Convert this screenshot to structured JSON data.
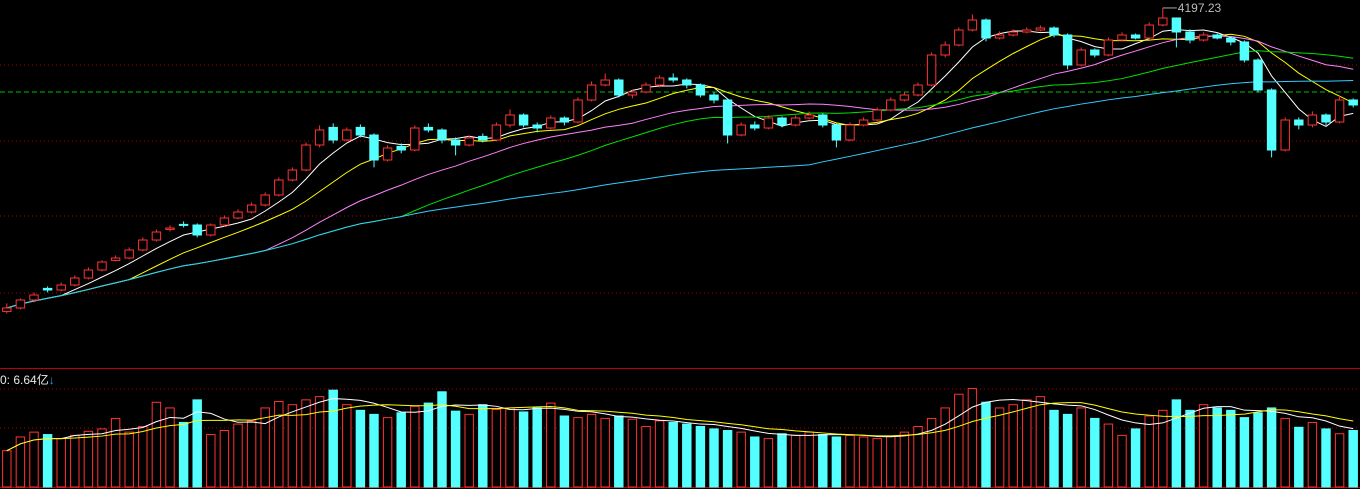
{
  "chart_data": {
    "type": "candlestick",
    "colors": {
      "up": "#ff3333",
      "down": "#54ffff",
      "ma5": "#ffffff",
      "ma10": "#ffff00",
      "ma20": "#ff80ff",
      "ma30": "#00e000",
      "ma60": "#33ccff",
      "grid": "#b00000",
      "divider": "#c00000",
      "price_line": "#00c000"
    },
    "price_ylim": [
      2437,
      4237
    ],
    "volume_ylim": [
      0,
      14.5
    ],
    "max_label": "4197.23",
    "max_index": 85,
    "volume_label": "0: 6.64亿",
    "volume_arrow": "↓",
    "ma_periods": [
      5,
      10,
      20,
      30,
      60
    ],
    "volume_ma_periods": [
      5,
      10
    ],
    "ohlc": [
      [
        2680,
        2720,
        2670,
        2697
      ],
      [
        2697,
        2745,
        2690,
        2737
      ],
      [
        2737,
        2775,
        2725,
        2762
      ],
      [
        2795,
        2805,
        2775,
        2787
      ],
      [
        2787,
        2825,
        2780,
        2812
      ],
      [
        2812,
        2860,
        2805,
        2847
      ],
      [
        2847,
        2900,
        2840,
        2887
      ],
      [
        2887,
        2935,
        2880,
        2927
      ],
      [
        2935,
        2960,
        2930,
        2947
      ],
      [
        2947,
        3000,
        2940,
        2987
      ],
      [
        2987,
        3050,
        2980,
        3037
      ],
      [
        3037,
        3090,
        3030,
        3077
      ],
      [
        3090,
        3110,
        3080,
        3097
      ],
      [
        3115,
        3130,
        3100,
        3112
      ],
      [
        3112,
        3120,
        3050,
        3062
      ],
      [
        3062,
        3120,
        3055,
        3112
      ],
      [
        3112,
        3160,
        3105,
        3147
      ],
      [
        3147,
        3190,
        3140,
        3177
      ],
      [
        3177,
        3225,
        3170,
        3212
      ],
      [
        3212,
        3275,
        3205,
        3262
      ],
      [
        3262,
        3350,
        3255,
        3337
      ],
      [
        3337,
        3400,
        3330,
        3387
      ],
      [
        3387,
        3525,
        3380,
        3512
      ],
      [
        3512,
        3610,
        3500,
        3587
      ],
      [
        3600,
        3620,
        3520,
        3537
      ],
      [
        3537,
        3600,
        3530,
        3587
      ],
      [
        3600,
        3615,
        3550,
        3562
      ],
      [
        3562,
        3570,
        3400,
        3437
      ],
      [
        3437,
        3510,
        3430,
        3497
      ],
      [
        3505,
        3520,
        3470,
        3487
      ],
      [
        3487,
        3610,
        3480,
        3597
      ],
      [
        3600,
        3620,
        3575,
        3587
      ],
      [
        3587,
        3595,
        3520,
        3537
      ],
      [
        3537,
        3550,
        3460,
        3512
      ],
      [
        3512,
        3560,
        3505,
        3547
      ],
      [
        3555,
        3570,
        3525,
        3537
      ],
      [
        3537,
        3625,
        3530,
        3612
      ],
      [
        3612,
        3690,
        3600,
        3662
      ],
      [
        3662,
        3670,
        3600,
        3612
      ],
      [
        3612,
        3625,
        3575,
        3597
      ],
      [
        3597,
        3660,
        3590,
        3647
      ],
      [
        3647,
        3655,
        3610,
        3627
      ],
      [
        3627,
        3750,
        3620,
        3737
      ],
      [
        3737,
        3830,
        3730,
        3812
      ],
      [
        3812,
        3870,
        3805,
        3837
      ],
      [
        3837,
        3845,
        3750,
        3762
      ],
      [
        3762,
        3790,
        3745,
        3777
      ],
      [
        3777,
        3825,
        3770,
        3812
      ],
      [
        3812,
        3860,
        3800,
        3847
      ],
      [
        3847,
        3870,
        3825,
        3837
      ],
      [
        3837,
        3845,
        3795,
        3812
      ],
      [
        3812,
        3820,
        3750,
        3762
      ],
      [
        3762,
        3775,
        3720,
        3737
      ],
      [
        3737,
        3745,
        3520,
        3562
      ],
      [
        3562,
        3625,
        3555,
        3612
      ],
      [
        3612,
        3630,
        3585,
        3597
      ],
      [
        3597,
        3660,
        3590,
        3647
      ],
      [
        3647,
        3655,
        3600,
        3612
      ],
      [
        3612,
        3660,
        3605,
        3647
      ],
      [
        3647,
        3680,
        3640,
        3662
      ],
      [
        3662,
        3670,
        3600,
        3612
      ],
      [
        3612,
        3620,
        3500,
        3537
      ],
      [
        3537,
        3625,
        3530,
        3612
      ],
      [
        3612,
        3650,
        3605,
        3637
      ],
      [
        3637,
        3700,
        3630,
        3687
      ],
      [
        3687,
        3750,
        3680,
        3737
      ],
      [
        3737,
        3775,
        3730,
        3762
      ],
      [
        3762,
        3825,
        3755,
        3812
      ],
      [
        3812,
        3975,
        3805,
        3962
      ],
      [
        3962,
        4030,
        3950,
        4012
      ],
      [
        4012,
        4100,
        4005,
        4087
      ],
      [
        4087,
        4165,
        4080,
        4137
      ],
      [
        4137,
        4145,
        4030,
        4047
      ],
      [
        4047,
        4080,
        4040,
        4062
      ],
      [
        4062,
        4090,
        4055,
        4077
      ],
      [
        4077,
        4100,
        4070,
        4087
      ],
      [
        4087,
        4110,
        4080,
        4097
      ],
      [
        4097,
        4105,
        4050,
        4062
      ],
      [
        4062,
        4070,
        3890,
        3912
      ],
      [
        3912,
        4000,
        3905,
        3987
      ],
      [
        3987,
        3995,
        3950,
        3962
      ],
      [
        3962,
        4050,
        3955,
        4037
      ],
      [
        4037,
        4075,
        4030,
        4062
      ],
      [
        4062,
        4070,
        4040,
        4047
      ],
      [
        4047,
        4125,
        4040,
        4112
      ],
      [
        4112,
        4197.23,
        4105,
        4147
      ],
      [
        4147,
        4150,
        4000,
        4077
      ],
      [
        4077,
        4090,
        4020,
        4037
      ],
      [
        4037,
        4075,
        4030,
        4062
      ],
      [
        4062,
        4070,
        4040,
        4047
      ],
      [
        4047,
        4055,
        4010,
        4027
      ],
      [
        4027,
        4035,
        3925,
        3937
      ],
      [
        3937,
        3945,
        3775,
        3787
      ],
      [
        3787,
        3795,
        3450,
        3487
      ],
      [
        3487,
        3650,
        3480,
        3637
      ],
      [
        3637,
        3650,
        3590,
        3612
      ],
      [
        3612,
        3680,
        3600,
        3662
      ],
      [
        3662,
        3670,
        3610,
        3627
      ],
      [
        3627,
        3760,
        3620,
        3737
      ],
      [
        3737,
        3745,
        3700,
        3712
      ]
    ],
    "volume": [
      4.5,
      6.2,
      6.8,
      6.5,
      6.0,
      6.4,
      6.9,
      7.2,
      8.5,
      6.8,
      7.5,
      10.5,
      9.8,
      8.0,
      10.8,
      6.5,
      7.0,
      7.8,
      8.2,
      9.8,
      10.6,
      10.2,
      10.8,
      11.2,
      12.0,
      10.2,
      9.5,
      9.0,
      8.6,
      9.2,
      10.0,
      10.4,
      11.8,
      9.4,
      9.0,
      10.2,
      9.6,
      9.8,
      9.3,
      9.8,
      10.4,
      8.8,
      8.6,
      9.0,
      8.5,
      8.8,
      8.4,
      7.5,
      8.2,
      8.0,
      7.8,
      7.5,
      7.2,
      7.0,
      6.8,
      6.2,
      6.0,
      6.6,
      6.4,
      6.8,
      6.5,
      6.2,
      6.4,
      6.2,
      6.0,
      6.3,
      6.8,
      7.5,
      8.5,
      9.8,
      11.5,
      12.2,
      10.5,
      9.8,
      10.2,
      10.8,
      11.2,
      9.5,
      9.0,
      9.8,
      8.5,
      7.8,
      6.4,
      7.2,
      8.8,
      9.5,
      10.8,
      9.5,
      10.2,
      9.8,
      9.5,
      8.6,
      9.2,
      9.8,
      8.5,
      7.4,
      8.0,
      7.2,
      6.6,
      7.0
    ]
  }
}
